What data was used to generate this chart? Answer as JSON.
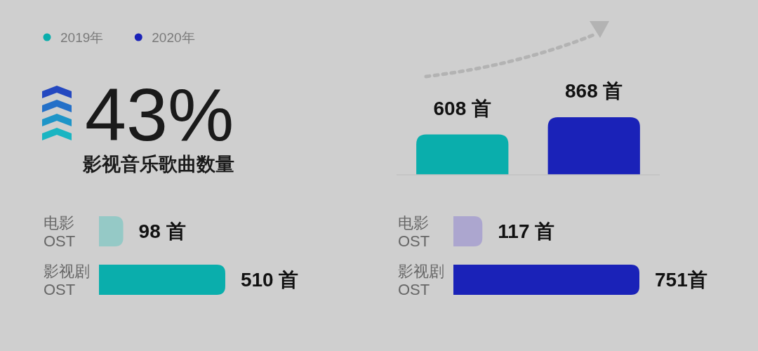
{
  "chart_data": [
    {
      "type": "bar",
      "stacked": true,
      "categories": [
        null,
        null
      ],
      "series": [
        {
          "name": "2019年",
          "color": "#0aaeac",
          "values": [
            608,
            null
          ],
          "value_labels": [
            "608 首",
            null
          ]
        },
        {
          "name": "2020年",
          "color": "#1a22b8",
          "values": [
            null,
            868
          ],
          "value_labels": [
            null,
            "868 首"
          ]
        }
      ],
      "legend": "top left"
    },
    {
      "type": "other",
      "title": "43%",
      "subtitle": "影视音乐歌曲数量"
    },
    {
      "type": "bar",
      "orientation": "horizontal",
      "categories": [
        "电影 OST",
        "影视剧 OST"
      ],
      "values": [
        98,
        510
      ],
      "colors": [
        "#95c9c6",
        "#0aaeac"
      ],
      "value_labels": [
        "98 首",
        "510 首"
      ]
    },
    {
      "type": "bar",
      "orientation": "horizontal",
      "categories": [
        "电影 OST",
        "影视剧 OST"
      ],
      "values": [
        117,
        751
      ],
      "colors": [
        "#aca6cf",
        "#1a22b8"
      ],
      "value_labels": [
        "117 首",
        "751首"
      ]
    }
  ]
}
